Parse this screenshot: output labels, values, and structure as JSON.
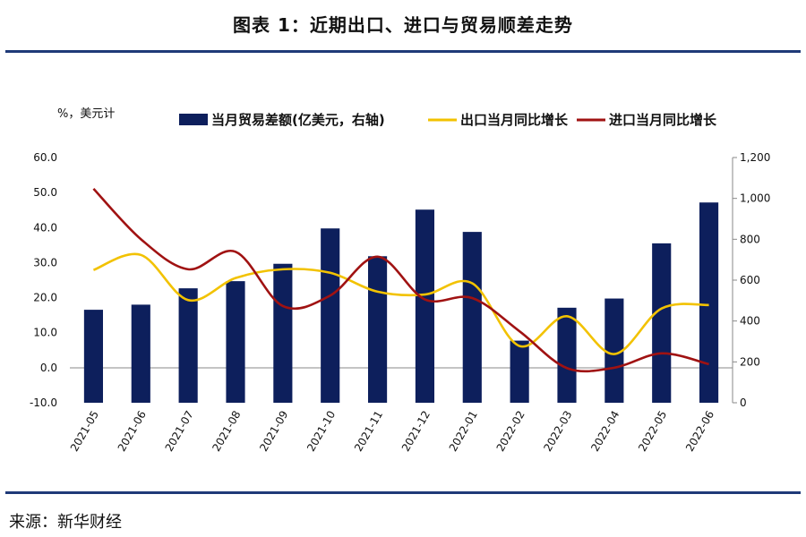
{
  "title": "图表 1：近期出口、进口与贸易顺差走势",
  "source": "来源：新华财经",
  "chart_data": {
    "type": "bar",
    "categories": [
      "2021-05",
      "2021-06",
      "2021-07",
      "2021-08",
      "2021-09",
      "2021-10",
      "2021-11",
      "2021-12",
      "2022-01",
      "2022-02",
      "2022-03",
      "2022-04",
      "2022-05",
      "2022-06"
    ],
    "left_axis": {
      "unit_label": "%，美元计",
      "ylim": [
        -10,
        60
      ],
      "ticks": [
        "-10.0",
        "0.0",
        "10.0",
        "20.0",
        "30.0",
        "40.0",
        "50.0",
        "60.0"
      ]
    },
    "right_axis": {
      "ylim": [
        0,
        1200
      ],
      "ticks": [
        "0",
        "200",
        "400",
        "600",
        "800",
        "1,000",
        "1,200"
      ]
    },
    "series": [
      {
        "name": "当月贸易差额(亿美元，右轴)",
        "type": "bar",
        "axis": "right",
        "color": "#0d1f5c",
        "values": [
          455,
          480,
          560,
          595,
          680,
          853,
          717,
          945,
          836,
          304,
          465,
          510,
          780,
          980
        ]
      },
      {
        "name": "出口当月同比增长",
        "type": "line",
        "axis": "left",
        "color": "#f2c200",
        "values": [
          27.9,
          32.2,
          19.3,
          25.6,
          28.1,
          27.1,
          21.7,
          20.9,
          24.1,
          6.2,
          14.7,
          3.9,
          16.9,
          17.9
        ]
      },
      {
        "name": "进口当月同比增长",
        "type": "line",
        "axis": "left",
        "color": "#a01212",
        "values": [
          51.1,
          36.7,
          28.1,
          33.1,
          17.6,
          20.6,
          31.7,
          19.5,
          19.9,
          10.4,
          -0.1,
          0.0,
          4.1,
          1.0
        ]
      }
    ]
  }
}
